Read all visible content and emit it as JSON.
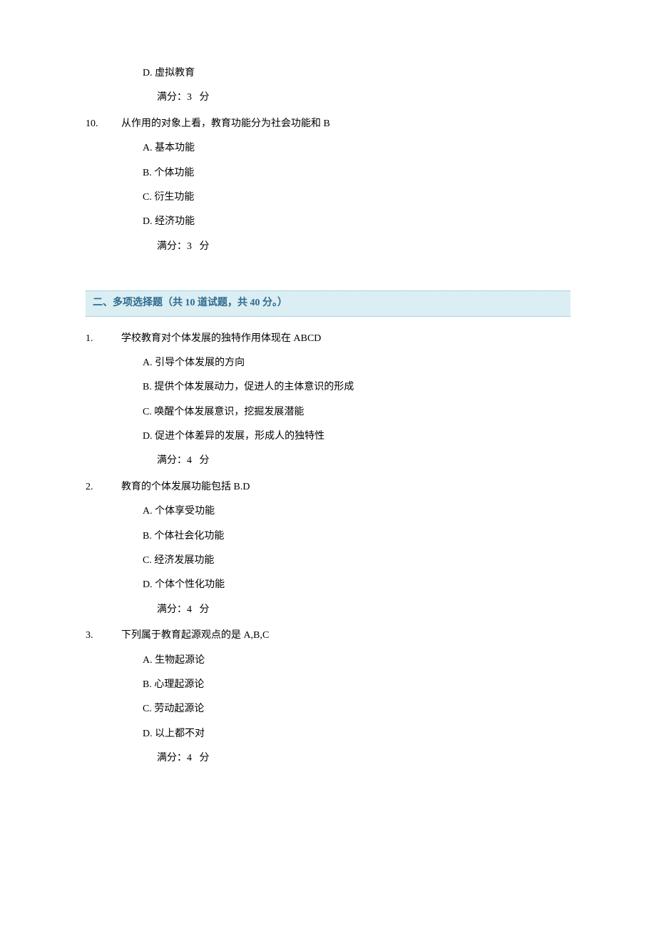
{
  "q9tail": {
    "options": [
      {
        "letter": "D.",
        "text": "虚拟教育"
      }
    ],
    "score_label": "满分：3",
    "score_suffix": "分"
  },
  "q10": {
    "num": "10.",
    "text": "从作用的对象上看，教育功能分为社会功能和 B",
    "options": [
      {
        "letter": "A.",
        "text": "基本功能"
      },
      {
        "letter": "B.",
        "text": "个体功能"
      },
      {
        "letter": "C.",
        "text": "衍生功能"
      },
      {
        "letter": "D.",
        "text": "经济功能"
      }
    ],
    "score_label": "满分：3",
    "score_suffix": "分"
  },
  "section2": {
    "title": "二、多项选择题（共  10  道试题，共  40  分。）"
  },
  "mq1": {
    "num": "1.",
    "text": "学校教育对个体发展的独特作用体现在 ABCD",
    "options": [
      {
        "letter": "A.",
        "text": "引导个体发展的方向"
      },
      {
        "letter": "B.",
        "text": "提供个体发展动力，促进人的主体意识的形成"
      },
      {
        "letter": "C.",
        "text": "唤醒个体发展意识，挖掘发展潜能"
      },
      {
        "letter": "D.",
        "text": "促进个体差异的发展，形成人的独特性"
      }
    ],
    "score_label": "满分：4",
    "score_suffix": "分"
  },
  "mq2": {
    "num": "2.",
    "text": "教育的个体发展功能包括 B.D",
    "options": [
      {
        "letter": "A.",
        "text": "个体享受功能"
      },
      {
        "letter": "B.",
        "text": "个体社会化功能"
      },
      {
        "letter": "C.",
        "text": "经济发展功能"
      },
      {
        "letter": "D.",
        "text": "个体个性化功能"
      }
    ],
    "score_label": "满分：4",
    "score_suffix": "分"
  },
  "mq3": {
    "num": "3.",
    "text": "下列属于教育起源观点的是 A,B,C",
    "options": [
      {
        "letter": "A.",
        "text": "生物起源论"
      },
      {
        "letter": "B.",
        "text": "心理起源论"
      },
      {
        "letter": "C.",
        "text": "劳动起源论"
      },
      {
        "letter": "D.",
        "text": "以上都不对"
      }
    ],
    "score_label": "满分：4",
    "score_suffix": "分"
  }
}
